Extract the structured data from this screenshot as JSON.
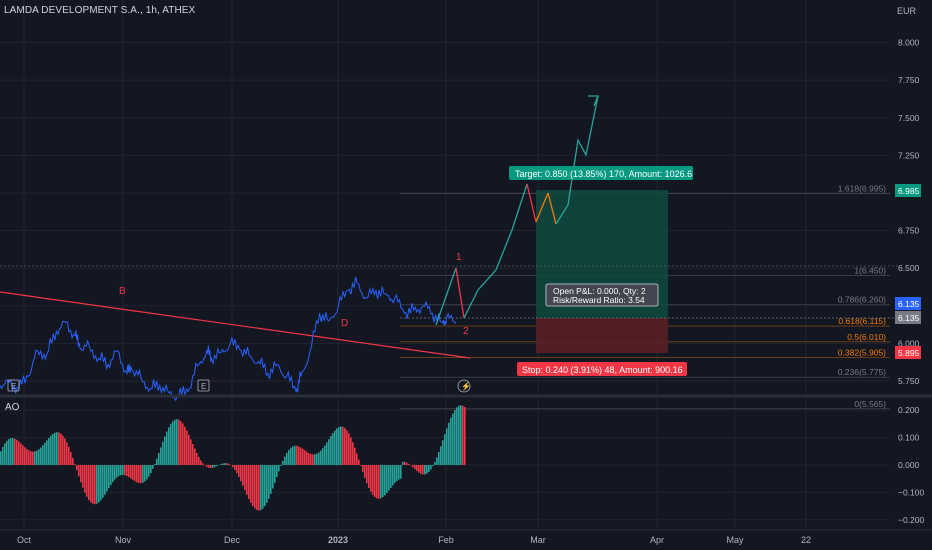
{
  "header": {
    "title": "LAMDA DEVELOPMENT S.A., 1h, ATHEX",
    "currency": "EUR"
  },
  "indicator": {
    "name": "AO"
  },
  "colors": {
    "background": "#131722",
    "grid": "#1f2430",
    "price_line": "#2962ff",
    "trendline": "#f23645",
    "path_up": "#26a69a",
    "path_down": "#f57c00",
    "target": "#089981",
    "stop": "#f23645",
    "ao_up": "#26a69a",
    "ao_down": "#f23645"
  },
  "chart_data": [
    {
      "type": "line",
      "title": "LAMDA DEVELOPMENT S.A., 1h, ATHEX",
      "x_ticks": [
        "Oct",
        "Nov",
        "Dec",
        "2023",
        "Feb",
        "Mar",
        "Apr",
        "May",
        "22"
      ],
      "y_ticks": [
        "8.000",
        "7.750",
        "7.500",
        "7.250",
        "7.000",
        "6.750",
        "6.500",
        "6.250",
        "6.000",
        "5.750"
      ],
      "ylim": [
        5.65,
        8.15
      ],
      "series": [
        {
          "x": [
            0,
            2,
            4,
            6,
            8,
            10,
            12,
            14,
            16,
            17,
            19,
            21,
            23,
            25,
            27,
            28,
            30,
            32,
            34,
            36,
            38,
            40,
            42,
            44,
            45,
            47,
            49,
            51,
            53,
            55,
            57,
            59,
            61,
            63,
            64,
            66,
            68,
            70,
            72,
            74,
            76,
            78,
            80,
            82,
            84,
            86,
            88,
            90,
            92,
            94,
            95,
            97
          ],
          "y": [
            5.72,
            5.74,
            5.7,
            5.78,
            5.95,
            5.93,
            6.08,
            6.14,
            6.05,
            5.97,
            5.98,
            5.9,
            5.86,
            5.95,
            5.8,
            5.83,
            5.77,
            5.7,
            5.72,
            5.67,
            5.65,
            5.68,
            5.85,
            5.95,
            5.9,
            5.94,
            6.0,
            5.96,
            5.92,
            5.88,
            5.8,
            5.86,
            5.78,
            5.68,
            5.78,
            5.95,
            6.2,
            6.15,
            6.25,
            6.35,
            6.4,
            6.3,
            6.35,
            6.33,
            6.3,
            6.2,
            6.22,
            6.25,
            6.2,
            6.14,
            6.17,
            6.13
          ]
        }
      ],
      "markers": {
        "B": "B",
        "D": "D",
        "one": "1",
        "two": "2"
      },
      "fib_levels": [
        {
          "label": "1.618(6.995)",
          "value": 6.995
        },
        {
          "label": "1(6.450)",
          "value": 6.45
        },
        {
          "label": "0.786(6.260)",
          "value": 6.26
        },
        {
          "label": "0.618(6.115)",
          "value": 6.115
        },
        {
          "label": "0.5(6.010)",
          "value": 6.01
        },
        {
          "label": "0.382(5.905)",
          "value": 5.905
        },
        {
          "label": "0.236(5.775)",
          "value": 5.775
        },
        {
          "label": "0(5.565)",
          "value": 5.565
        }
      ],
      "price_labels": {
        "target": "6.985",
        "last_a": "6.135",
        "last_b": "6.135",
        "stop": "5.895"
      },
      "position": {
        "target_text": "Target: 0.850 (13.85%) 170, Amount: 1026.6",
        "stop_text": "Stop: 0.240 (3.91%) 48, Amount: 900.16",
        "pnl_text": "Open P&L: 0.000, Qty: 2",
        "rr_text": "Risk/Reward Ratio: 3.54"
      }
    },
    {
      "type": "bar",
      "title": "AO",
      "y_ticks": [
        "0.200",
        "0.100",
        "0.000",
        "−0.100",
        "−0.200"
      ],
      "ylim": [
        -0.23,
        0.23
      ]
    }
  ]
}
